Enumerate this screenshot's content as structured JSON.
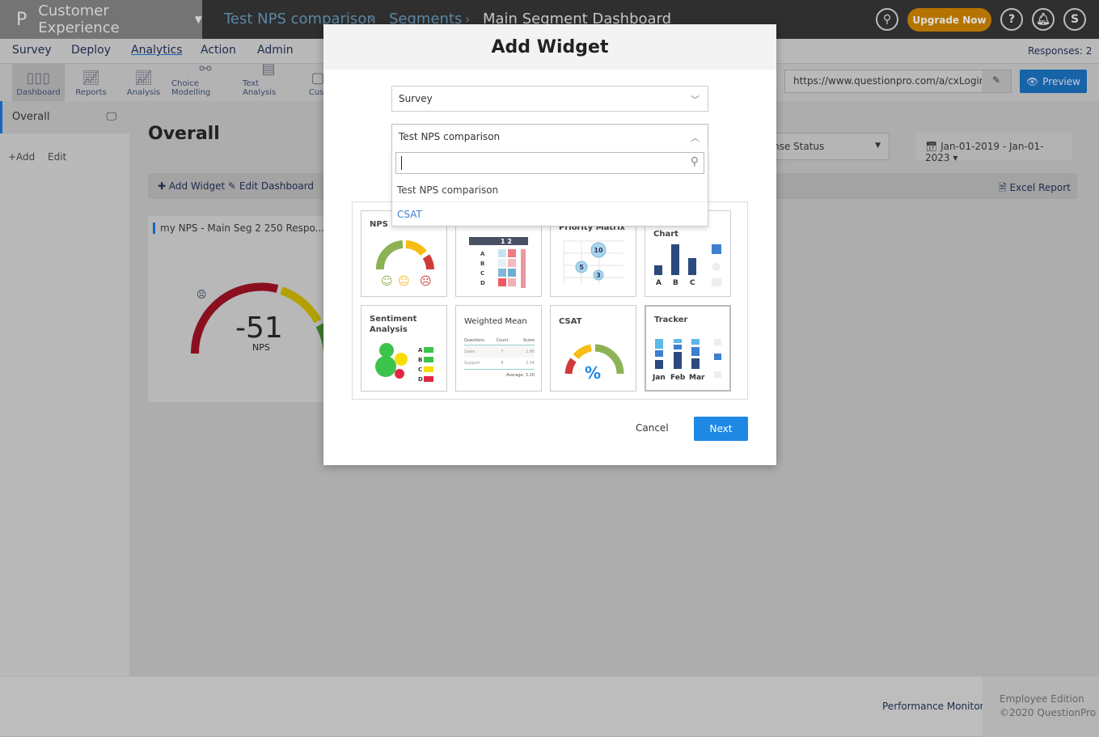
{
  "topbar": {
    "logo": "P",
    "product": "Customer Experience",
    "breadcrumbs": [
      "Test NPS comparison",
      "Segments",
      "Main Segment Dashboard"
    ],
    "upgrade": "Upgrade Now",
    "avatar": "S",
    "accent": "#b57400"
  },
  "nav": {
    "items": [
      "Survey",
      "Deploy",
      "Analytics",
      "Action",
      "Admin"
    ],
    "active": "Analytics",
    "responses": "Responses: 2"
  },
  "tools": [
    "Dashboard",
    "Reports",
    "Analysis",
    "Choice Modelling",
    "Text Analysis",
    "Cust"
  ],
  "url": "https://www.questionpro.com/a/cxLogin.d",
  "preview": "Preview",
  "sidebar": {
    "item": "Overall",
    "add": "+Add",
    "edit": "Edit"
  },
  "main": {
    "title": "Overall",
    "add_widget": "Add Widget",
    "edit_dashboard": "Edit Dashboard",
    "filter": "ponse Status",
    "date_range": "Jan-01-2019 - Jan-01-2023",
    "excel": "Excel Report",
    "widget_title": "my NPS - Main Seg 2  250 Respo...",
    "nps_value": "-51",
    "nps_label": "NPS"
  },
  "footer": {
    "perf": "Performance Monitor",
    "edition": "Employee Edition",
    "copyright": "©2020 QuestionPro"
  },
  "modal": {
    "title": "Add Widget",
    "survey_select": "Survey",
    "survey_value": "Test NPS comparison",
    "search_value": "",
    "options": [
      "Test NPS comparison",
      "CSAT"
    ],
    "tiles": [
      "NPS",
      "",
      "Priority Matrix",
      "Chart",
      "Sentiment Analysis",
      "Weighted Mean",
      "CSAT",
      "Tracker"
    ],
    "wm": {
      "headers": [
        "Questions",
        "Count",
        "Score"
      ],
      "rows": [
        [
          "Sales",
          "7",
          "2.86"
        ],
        [
          "Support",
          "8",
          "3.34"
        ]
      ],
      "avg": "Average: 3.10"
    },
    "matrix": {
      "header": "1 2",
      "rows": [
        "A",
        "B",
        "C",
        "D"
      ]
    },
    "bubbles": [
      "10",
      "5",
      "3"
    ],
    "chart_labels": [
      "A",
      "B",
      "C"
    ],
    "tracker_labels": [
      "Jan",
      "Feb",
      "Mar"
    ],
    "sent_labels": [
      "A",
      "B",
      "C",
      "D"
    ],
    "cancel": "Cancel",
    "next": "Next",
    "next_color": "#1e88e5"
  }
}
